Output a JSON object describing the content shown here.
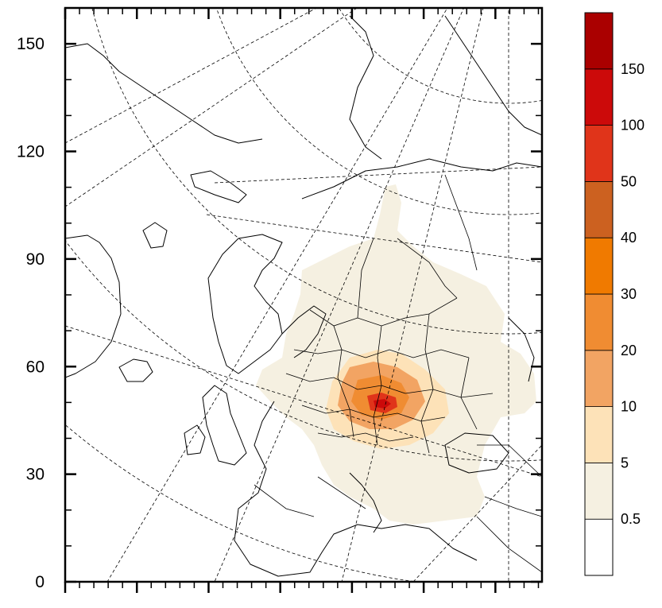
{
  "map": {
    "y_axis": {
      "ticks": [
        "0",
        "30",
        "60",
        "90",
        "120",
        "150"
      ],
      "tick_values": [
        0,
        30,
        60,
        90,
        120,
        150
      ],
      "range": [
        0,
        160
      ]
    },
    "x_axis": {
      "ticks_labeled": false,
      "range": [
        0,
        133
      ]
    }
  },
  "colorbar": {
    "labels": [
      "0.5",
      "5",
      "10",
      "20",
      "30",
      "40",
      "50",
      "100",
      "150"
    ],
    "colors": [
      "#ffffff",
      "#f5f0e1",
      "#fde2b8",
      "#f2a463",
      "#f08c32",
      "#f07a00",
      "#cc6120",
      "#e0341a",
      "#cc0a0a",
      "#aa0000"
    ]
  },
  "colors": {
    "land": "#ffffff",
    "frame": "#000000",
    "plume_low": "#f5f0e1",
    "plume_mid": "#fde2b8",
    "plume_high": "#f2a463",
    "plume_peak": "#e0341a"
  }
}
